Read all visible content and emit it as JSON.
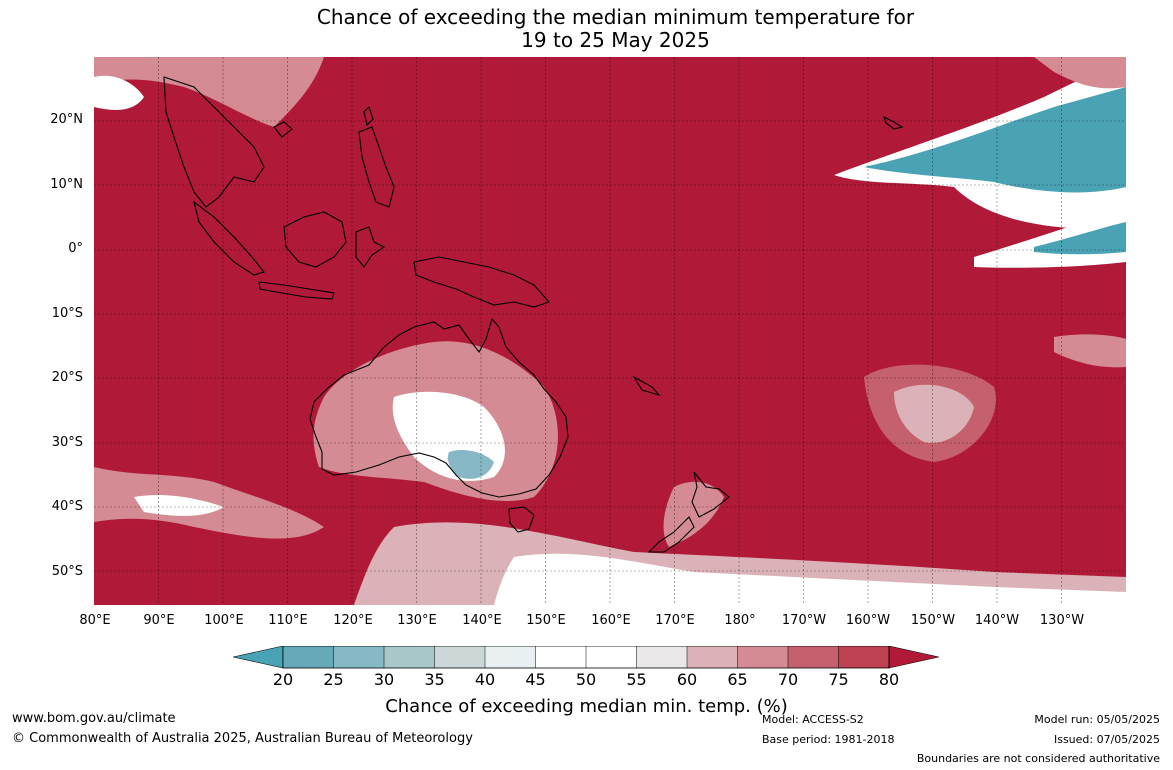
{
  "map": {
    "title_line1": "Chance of exceeding the median minimum temperature for",
    "title_line2": "19 to 25 May 2025",
    "lat_labels": [
      "20°N",
      "10°N",
      "0°",
      "10°S",
      "20°S",
      "30°S",
      "40°S",
      "50°S"
    ],
    "lon_labels": [
      "80°E",
      "90°E",
      "100°E",
      "110°E",
      "120°E",
      "130°E",
      "140°E",
      "150°E",
      "160°E",
      "170°E",
      "180°",
      "170°W",
      "160°W",
      "150°W",
      "140°W",
      "130°W"
    ],
    "base_color": "#b01a38"
  },
  "legend": {
    "label": "Chance of exceeding median min. temp. (%)",
    "ticks": [
      "20",
      "25",
      "30",
      "35",
      "40",
      "45",
      "50",
      "55",
      "60",
      "65",
      "70",
      "75",
      "80"
    ],
    "colors": {
      "below_20": "#4aa3b5",
      "20_25": "#66aab9",
      "25_30": "#86b9c5",
      "30_35": "#a8c7c9",
      "35_40": "#ccd8d8",
      "40_45": "#e9f0f2",
      "45_50": "#ffffff",
      "50_55": "#ffffff",
      "55_60": "#e9e7e8",
      "60_65": "#dbb2b7",
      "65_70": "#d48b93",
      "70_75": "#c5606e",
      "75_80": "#bd4152",
      "above_80": "#b01a38"
    }
  },
  "footer": {
    "website": "www.bom.gov.au/climate",
    "copyright": "© Commonwealth of Australia 2025, Australian Bureau of Meteorology",
    "model": "Model: ACCESS-S2",
    "base_period": "Base period: 1981-2018",
    "model_run": "Model run: 05/05/2025",
    "issued": "Issued: 07/05/2025",
    "disclaimer": "Boundaries are not considered authoritative"
  }
}
